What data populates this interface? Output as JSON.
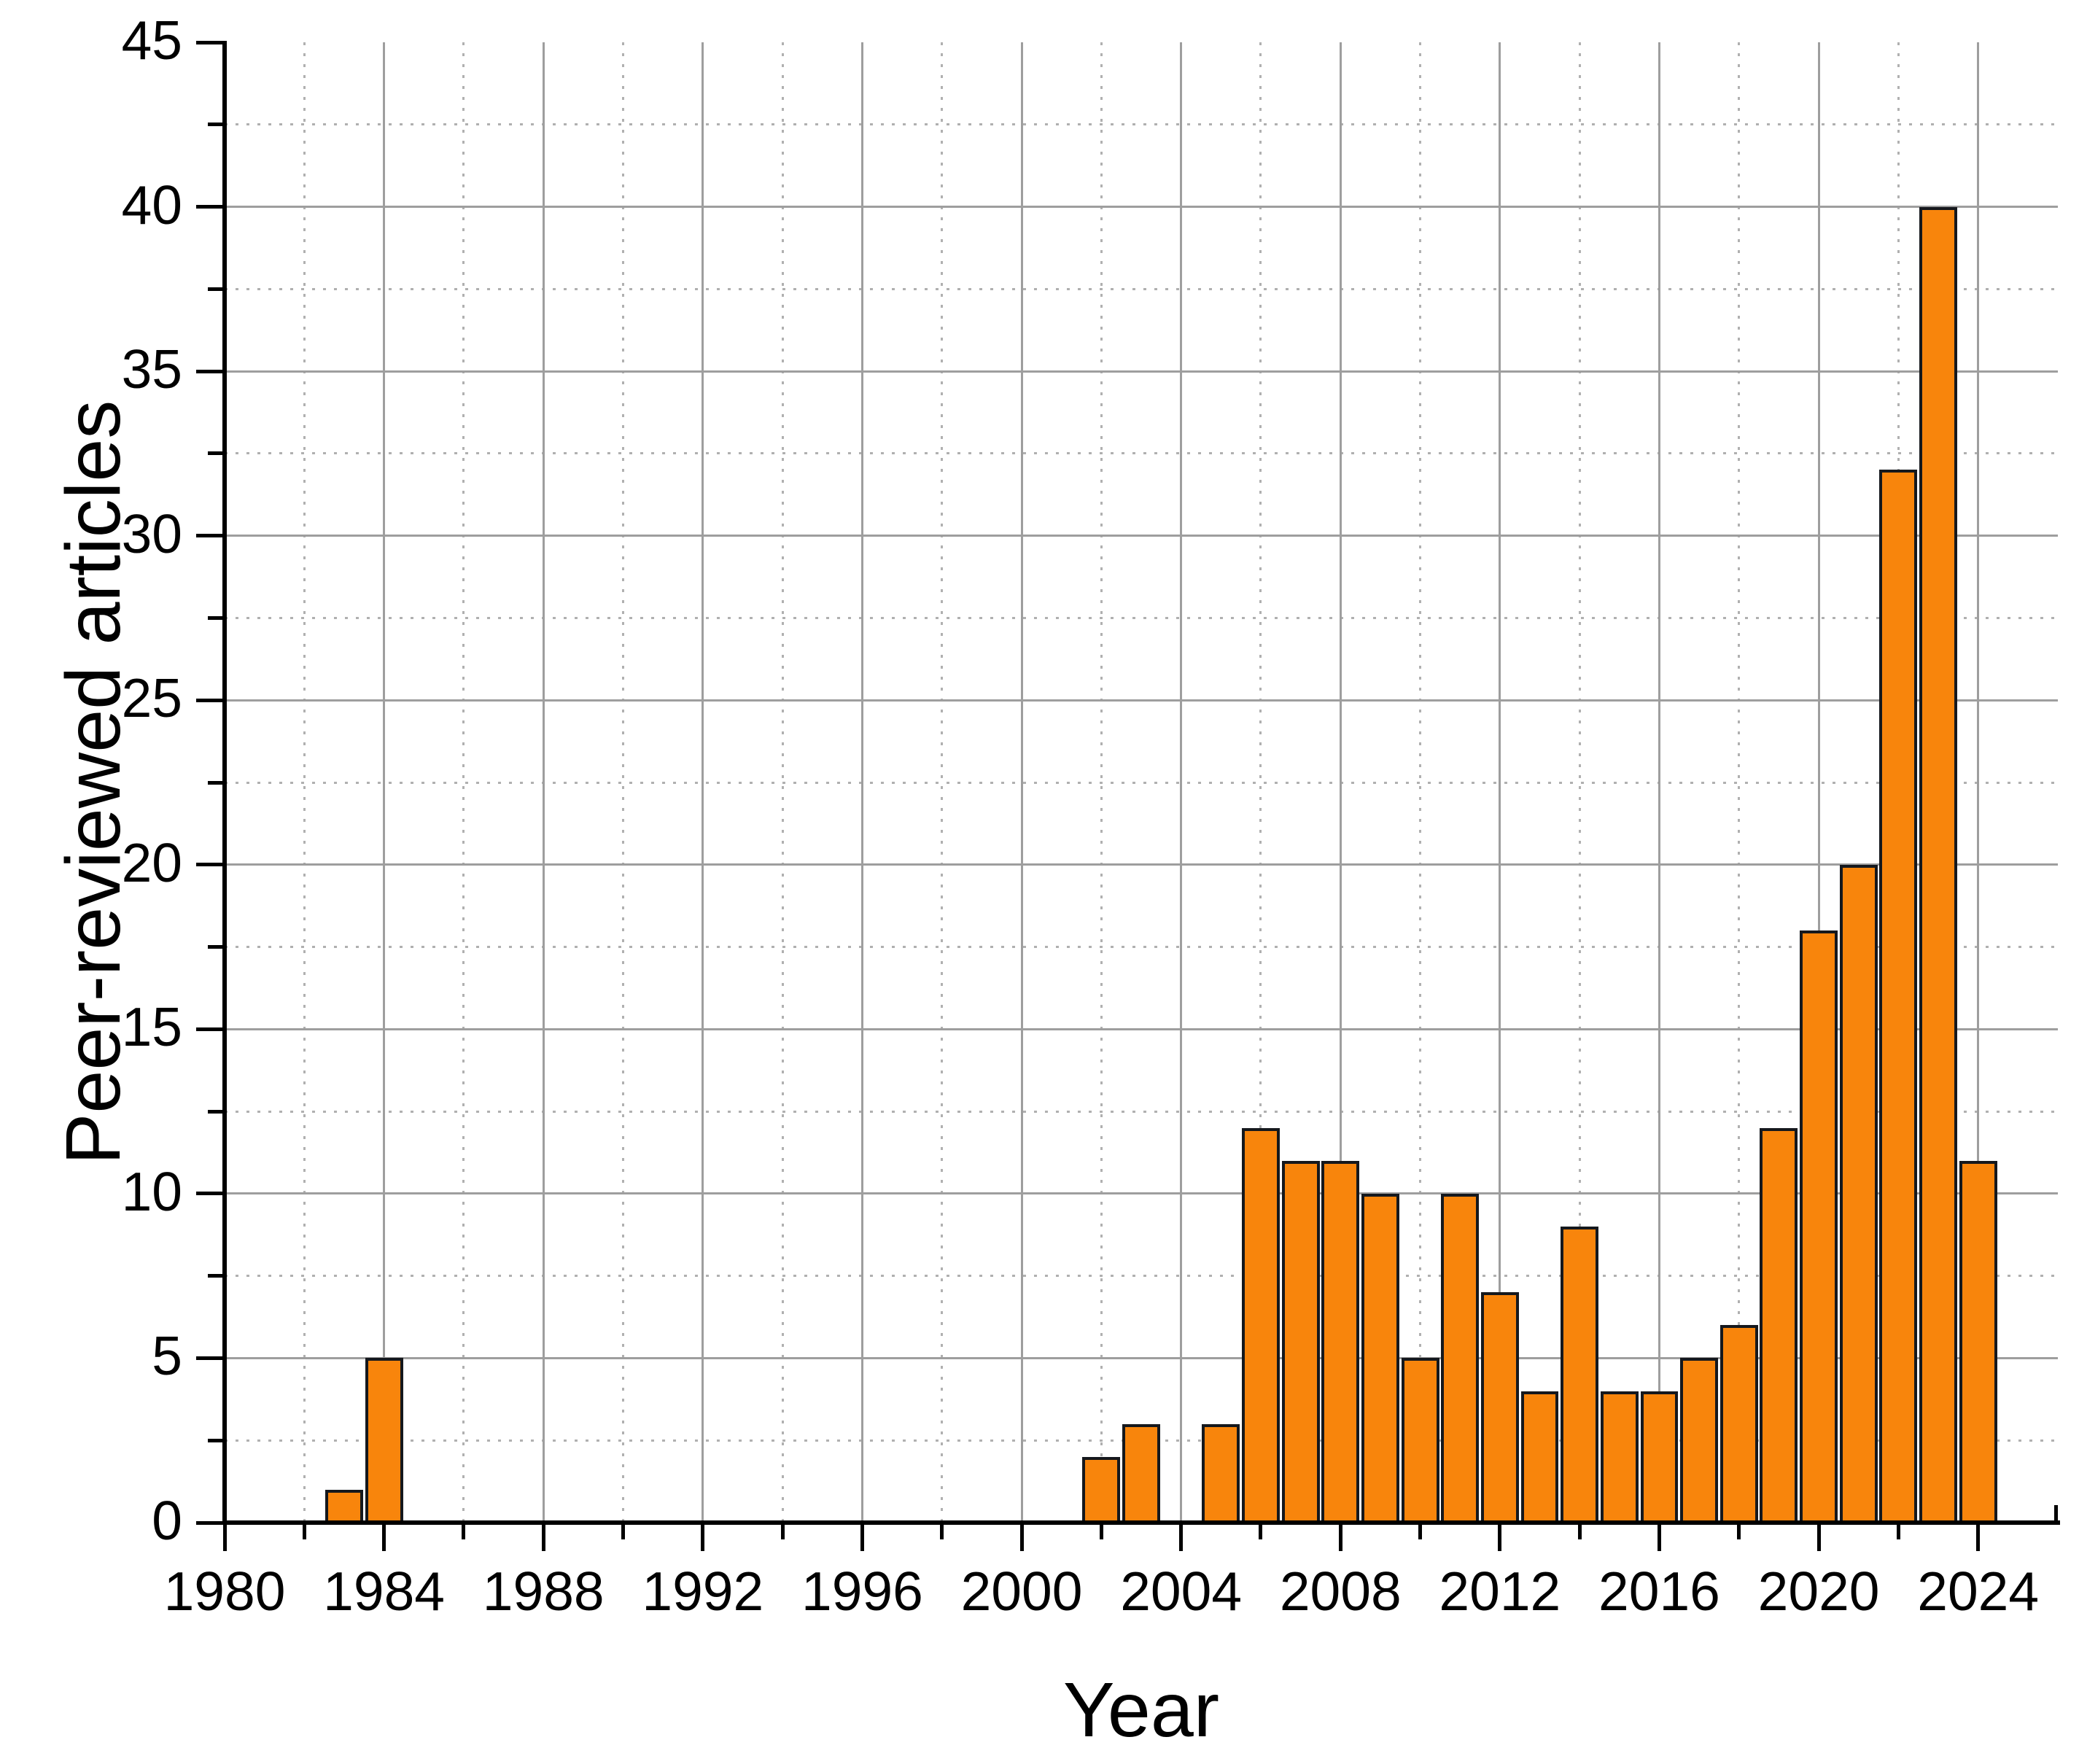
{
  "figure": {
    "background": "#ffffff",
    "text_color": "#000000"
  },
  "chart_data": {
    "type": "bar",
    "title": "",
    "xlabel": "Year",
    "ylabel": "Peer-reviewed articles",
    "x_axis": {
      "min": 1980,
      "max": 2026,
      "major_step": 4,
      "minor_step": 2,
      "major_tick_labels": [
        "1980",
        "1984",
        "1988",
        "1992",
        "1996",
        "2000",
        "2004",
        "2008",
        "2012",
        "2016",
        "2020",
        "2024"
      ]
    },
    "y_axis": {
      "min": 0,
      "max": 45,
      "major_step": 5,
      "minor_step": 2.5,
      "major_tick_labels": [
        "0",
        "5",
        "10",
        "15",
        "20",
        "25",
        "30",
        "35",
        "40",
        "45"
      ]
    },
    "grid": {
      "solid_color": "#9e9e9e",
      "dotted_color": "#b0b0b0",
      "solid_on": true,
      "dotted_on": true
    },
    "axis_color": "#000000",
    "bar_style": {
      "fill": "#F8850C",
      "border": "#15181D",
      "width_years": 0.95
    },
    "categories_years": [
      1983,
      1984,
      2002,
      2003,
      2005,
      2006,
      2007,
      2008,
      2009,
      2010,
      2011,
      2012,
      2013,
      2014,
      2015,
      2016,
      2017,
      2018,
      2019,
      2020,
      2021,
      2022,
      2023,
      2024
    ],
    "values": [
      1,
      5,
      2,
      3,
      3,
      12,
      11,
      11,
      10,
      5,
      10,
      7,
      4,
      9,
      4,
      4,
      5,
      6,
      12,
      18,
      20,
      32,
      40,
      11
    ],
    "legend": null
  }
}
